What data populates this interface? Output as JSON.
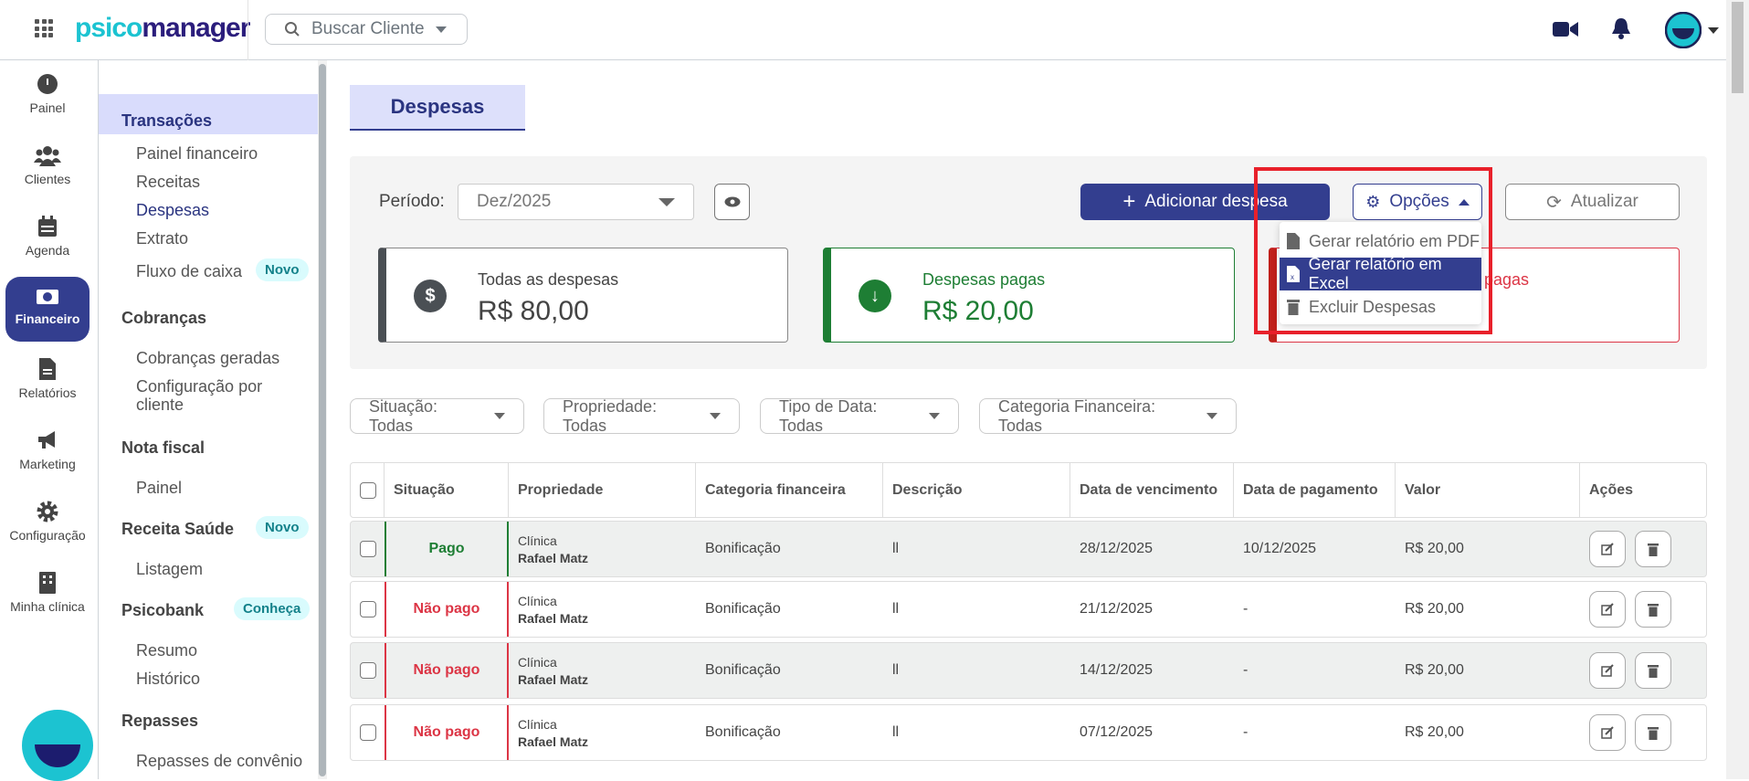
{
  "header": {
    "logo_a": "psico",
    "logo_b": "manager",
    "search_placeholder": "Buscar Cliente"
  },
  "rail": [
    {
      "label": "Painel",
      "icon": "gauge-icon"
    },
    {
      "label": "Clientes",
      "icon": "users-icon"
    },
    {
      "label": "Agenda",
      "icon": "calendar-icon"
    },
    {
      "label": "Financeiro",
      "icon": "money-icon",
      "active": true
    },
    {
      "label": "Relatórios",
      "icon": "file-icon"
    },
    {
      "label": "Marketing",
      "icon": "megaphone-icon"
    },
    {
      "label": "Configuração",
      "icon": "gear-icon"
    },
    {
      "label": "Minha clínica",
      "icon": "building-icon"
    }
  ],
  "submenu": {
    "transacoes": "Transações",
    "painel_financeiro": "Painel financeiro",
    "receitas": "Receitas",
    "despesas": "Despesas",
    "extrato": "Extrato",
    "fluxo": "Fluxo de caixa",
    "novo": "Novo",
    "cobrancas": "Cobranças",
    "cobrancas_geradas": "Cobranças geradas",
    "config_cliente_1": "Configuração por",
    "config_cliente_2": "cliente",
    "nota_fiscal": "Nota fiscal",
    "painel": "Painel",
    "receita_saude": "Receita Saúde",
    "listagem": "Listagem",
    "psicobank": "Psicobank",
    "conheca": "Conheça",
    "resumo": "Resumo",
    "historico": "Histórico",
    "repasses": "Repasses",
    "repasses_convenio": "Repasses de convênio"
  },
  "page": {
    "tab": "Despesas",
    "periodo_label": "Período:",
    "periodo_value": "Dez/2025",
    "add_button": "Adicionar despesa",
    "opcoes_button": "Opções",
    "atualizar_button": "Atualizar"
  },
  "cards": [
    {
      "label": "Todas as despesas",
      "value": "R$ 80,00",
      "color": "#4a4f54"
    },
    {
      "label": "Despesas pagas",
      "value": "R$ 20,00",
      "color": "#1e7e34"
    },
    {
      "label": "Despesas não pagas",
      "color": "#dc3545"
    }
  ],
  "dropdown": {
    "pdf": "Gerar relatório em PDF",
    "excel": "Gerar relatório em Excel",
    "excluir": "Excluir Despesas"
  },
  "filters": [
    "Situação: Todas",
    "Propriedade: Todas",
    "Tipo de Data: Todas",
    "Categoria Financeira: Todas"
  ],
  "table": {
    "columns": [
      "Situação",
      "Propriedade",
      "Categoria financeira",
      "Descrição",
      "Data de vencimento",
      "Data de pagamento",
      "Valor",
      "Ações"
    ],
    "rows": [
      {
        "situacao": "Pago",
        "prop1": "Clínica",
        "prop2": "Rafael Matz",
        "categoria": "Bonificação",
        "descricao": "ll",
        "vencimento": "28/12/2025",
        "pagamento": "10/12/2025",
        "valor": "R$ 20,00"
      },
      {
        "situacao": "Não pago",
        "prop1": "Clínica",
        "prop2": "Rafael Matz",
        "categoria": "Bonificação",
        "descricao": "ll",
        "vencimento": "21/12/2025",
        "pagamento": "-",
        "valor": "R$ 20,00"
      },
      {
        "situacao": "Não pago",
        "prop1": "Clínica",
        "prop2": "Rafael Matz",
        "categoria": "Bonificação",
        "descricao": "ll",
        "vencimento": "14/12/2025",
        "pagamento": "-",
        "valor": "R$ 20,00"
      },
      {
        "situacao": "Não pago",
        "prop1": "Clínica",
        "prop2": "Rafael Matz",
        "categoria": "Bonificação",
        "descricao": "ll",
        "vencimento": "07/12/2025",
        "pagamento": "-",
        "valor": "R$ 20,00"
      }
    ]
  },
  "colors": {
    "primary": "#333e8f",
    "paid": "#1e7e34",
    "unpaid": "#dc3545",
    "highlight_box": "#e8202a"
  }
}
